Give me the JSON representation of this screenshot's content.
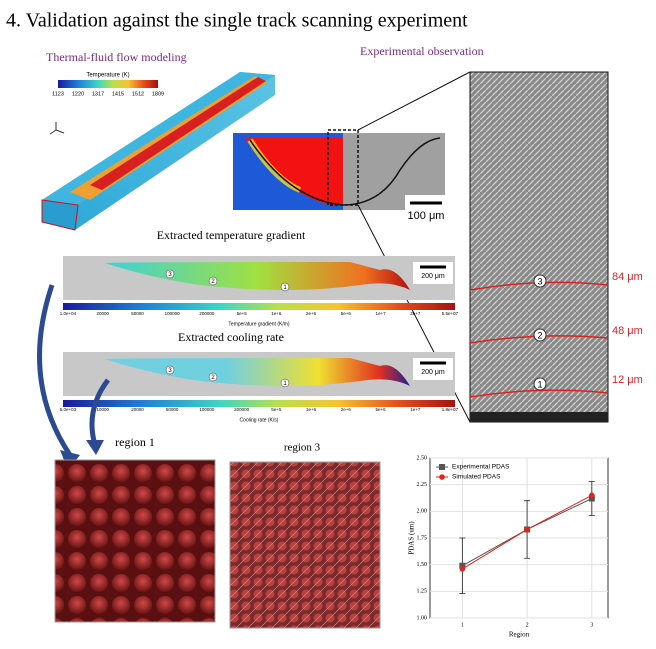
{
  "title": "4. Validation against the single track scanning experiment",
  "left_heading": "Thermal-fluid flow modeling",
  "right_heading": "Experimental observation",
  "temperature_bar": {
    "label": "Temperature (K)",
    "ticks": [
      "1123",
      "1220",
      "1317",
      "1415",
      "1512",
      "1809"
    ]
  },
  "cross_section": {
    "scale": "100 μm"
  },
  "gradient": {
    "heading": "Extracted temperature gradient",
    "scale": "200 μm",
    "markers": [
      "3",
      "2",
      "1"
    ],
    "ticks": [
      "1.0e+04",
      "20000",
      "50000",
      "100000",
      "200000",
      "5e+5",
      "1e+6",
      "2e+6",
      "5e+6",
      "1e+7",
      "2e+7",
      "5.5e+07"
    ],
    "label": "Temperature gradient (K/m)"
  },
  "cooling": {
    "heading": "Extracted cooling rate",
    "scale": "200 μm",
    "markers": [
      "3",
      "2",
      "1"
    ],
    "ticks": [
      "5.0e+03",
      "10000",
      "20000",
      "50000",
      "100000",
      "200000",
      "5e+5",
      "1e+6",
      "2e+6",
      "5e+6",
      "1e+7",
      "1.8e+07"
    ],
    "label": "Cooling rate (K/s)"
  },
  "sem": {
    "markers": [
      "3",
      "2",
      "1"
    ],
    "heights": [
      "84 μm",
      "48 μm",
      "12 μm"
    ]
  },
  "regions": [
    "region 1",
    "region 3"
  ],
  "chart_data": {
    "type": "line",
    "x_label": "Region",
    "y_label": "PDAS (um)",
    "x": [
      1,
      2,
      3
    ],
    "xlim": [
      0.5,
      3.25
    ],
    "xticks": [
      1,
      2,
      3
    ],
    "ylim": [
      1.0,
      2.5
    ],
    "yticks": [
      {
        "value": 1.0,
        "label": "1.00"
      },
      {
        "value": 1.25,
        "label": "1.25"
      },
      {
        "value": 1.5,
        "label": "1.50"
      },
      {
        "value": 1.75,
        "label": "1.75"
      },
      {
        "value": 2.0,
        "label": "2.00"
      },
      {
        "value": 2.25,
        "label": "2.25"
      },
      {
        "value": 2.5,
        "label": "2.50"
      }
    ],
    "grid": true,
    "legend": "upper left",
    "series": [
      {
        "name": "Experimental PDAS",
        "color": "#555555",
        "marker": "square",
        "values": [
          1.49,
          1.83,
          2.12
        ],
        "errors": [
          0.26,
          0.27,
          0.16
        ]
      },
      {
        "name": "Simulated PDAS",
        "color": "#e8221b",
        "marker": "circle",
        "values": [
          1.46,
          1.83,
          2.15
        ]
      }
    ]
  }
}
